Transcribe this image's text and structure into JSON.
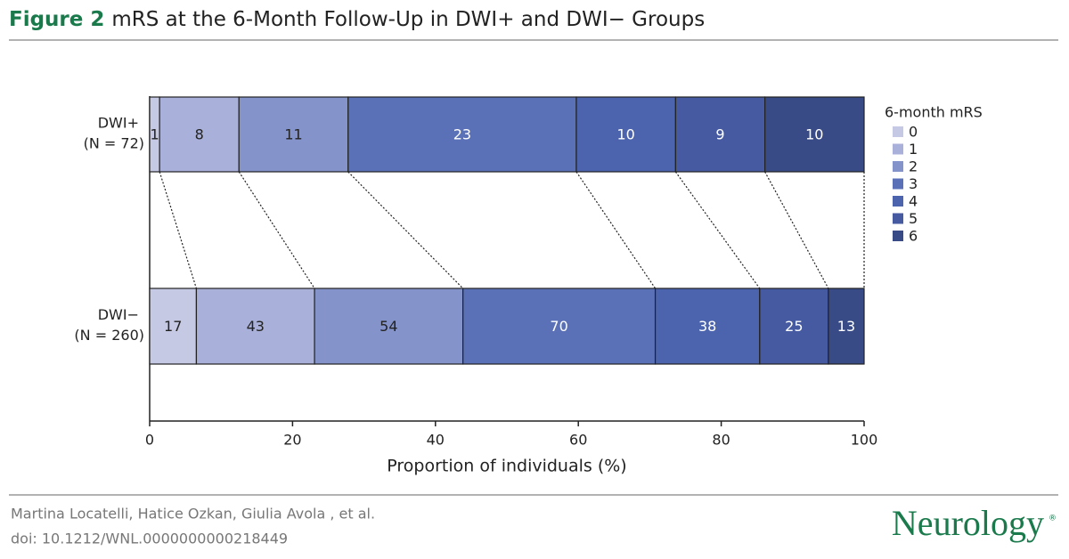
{
  "header": {
    "figure": "Figure 2",
    "title": "mRS at the 6-Month Follow-Up in DWI+ and DWI− Groups"
  },
  "chart_data": {
    "type": "bar",
    "orientation": "horizontal",
    "stacking": "percent",
    "categories": [
      "DWI+",
      "DWI−"
    ],
    "category_notes": [
      "(N = 72)",
      "(N = 260)"
    ],
    "xlabel": "Proportion of individuals (%)",
    "xlim": [
      0,
      100
    ],
    "xticks": [
      0,
      20,
      40,
      60,
      80,
      100
    ],
    "legend_title": "6-month mRS",
    "legend_position": "right",
    "series": [
      {
        "name": "0",
        "color": "#c5c9e4",
        "values": [
          1,
          17
        ]
      },
      {
        "name": "1",
        "color": "#a9b1da",
        "values": [
          8,
          43
        ]
      },
      {
        "name": "2",
        "color": "#8494cb",
        "values": [
          11,
          54
        ]
      },
      {
        "name": "3",
        "color": "#5a71b8",
        "values": [
          23,
          70
        ]
      },
      {
        "name": "4",
        "color": "#4c64ae",
        "values": [
          10,
          38
        ]
      },
      {
        "name": "5",
        "color": "#455aa1",
        "values": [
          9,
          25
        ]
      },
      {
        "name": "6",
        "color": "#394b86",
        "values": [
          10,
          13
        ]
      }
    ]
  },
  "footer": {
    "authors": "Martina Locatelli, Hatice Ozkan, Giulia Avola , et al.",
    "doi": "doi: 10.1212/WNL.0000000000218449",
    "journal": "Neurology",
    "mark": "®"
  }
}
